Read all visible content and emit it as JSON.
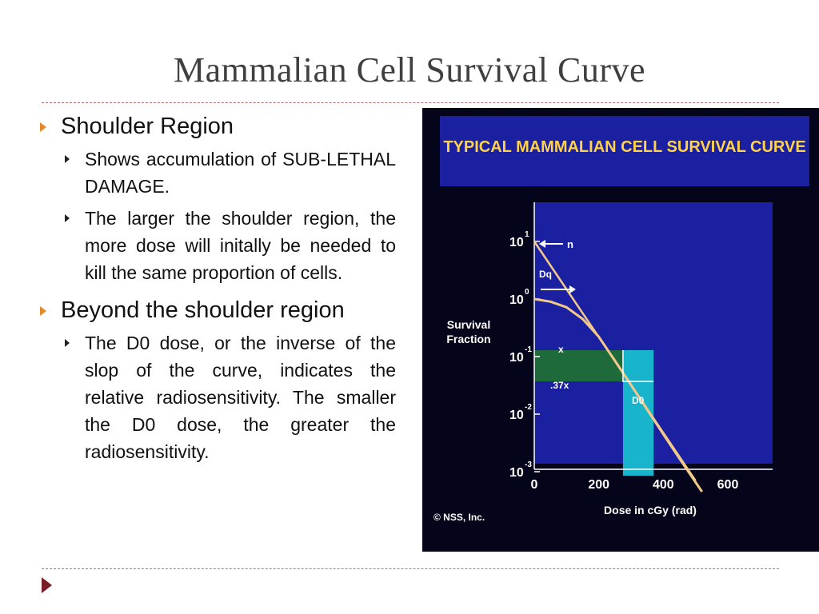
{
  "slide": {
    "title": "Mammalian Cell  Survival Curve"
  },
  "bullets": [
    {
      "text": "Shoulder Region",
      "sub": [
        "Shows accumulation of SUB-LETHAL DAMAGE.",
        "The larger the shoulder region, the more dose will initally be needed to kill the same proportion of cells."
      ]
    },
    {
      "text": "Beyond the shoulder region",
      "sub": [
        "The D0 dose, or the inverse of the slop of the curve, indicates the relative radiosensitivity. The smaller the D0 dose, the greater the radiosensitivity."
      ]
    }
  ],
  "figure": {
    "heading": "TYPICAL MAMMALIAN CELL SURVIVAL CURVE",
    "y_axis_label_line1": "Survival",
    "y_axis_label_line2": "Fraction",
    "x_axis_label": "Dose in cGy (rad)",
    "copyright": "© NSS, Inc.",
    "x_ticks": [
      "0",
      "200",
      "400",
      "600"
    ],
    "y_ticks": [
      {
        "base": "10",
        "exp": "1"
      },
      {
        "base": "10",
        "exp": "0"
      },
      {
        "base": "10",
        "exp": "-1"
      },
      {
        "base": "10",
        "exp": "-2"
      },
      {
        "base": "10",
        "exp": "-3"
      }
    ],
    "annotations": {
      "n": "n",
      "dq": "Dq",
      "d0": "D0",
      "x": "x",
      "x37": ".37x"
    },
    "colors": {
      "panel": "#1a20a0",
      "curve": "#f3c98a",
      "band": "#1f6a3a",
      "d0_bar": "#18b4cc",
      "heading": "#ffd24a"
    }
  },
  "chart_data": {
    "type": "line",
    "title": "TYPICAL MAMMALIAN CELL SURVIVAL CURVE",
    "xlabel": "Dose in cGy (rad)",
    "ylabel": "Survival Fraction",
    "x_scale": "linear",
    "y_scale": "log",
    "xlim": [
      0,
      650
    ],
    "ylim": [
      0.001,
      10
    ],
    "series": [
      {
        "x": [
          0,
          50,
          100,
          150,
          200,
          250,
          300,
          350,
          400,
          450,
          520
        ],
        "y": [
          1.0,
          0.9,
          0.72,
          0.45,
          0.22,
          0.085,
          0.032,
          0.012,
          0.0045,
          0.0017,
          0.00045
        ]
      }
    ],
    "extrapolation_line": {
      "x": [
        0,
        500
      ],
      "y": [
        10,
        0.0007
      ]
    },
    "grid": false,
    "legend": "none"
  }
}
